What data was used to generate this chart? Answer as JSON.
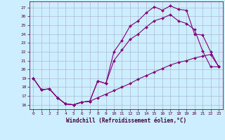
{
  "xlabel": "Windchill (Refroidissement éolien,°C)",
  "background_color": "#cceeff",
  "line_color": "#800080",
  "grid_color": "#aaaacc",
  "x_ticks": [
    0,
    1,
    2,
    3,
    4,
    5,
    6,
    7,
    8,
    9,
    10,
    11,
    12,
    13,
    14,
    15,
    16,
    17,
    18,
    19,
    20,
    21,
    22,
    23
  ],
  "y_ticks": [
    16,
    17,
    18,
    19,
    20,
    21,
    22,
    23,
    24,
    25,
    26,
    27
  ],
  "xlim": [
    -0.5,
    23.5
  ],
  "ylim": [
    15.5,
    27.7
  ],
  "series": [
    {
      "x": [
        0,
        1,
        2,
        3,
        4,
        5,
        6,
        7,
        8,
        9,
        10,
        11,
        12,
        13,
        14,
        15,
        16,
        17,
        18,
        19,
        20,
        21,
        22,
        23
      ],
      "y": [
        19.0,
        17.7,
        17.8,
        16.8,
        16.1,
        16.0,
        16.3,
        16.4,
        18.7,
        18.4,
        22.0,
        23.3,
        24.9,
        25.5,
        26.4,
        27.1,
        26.7,
        27.2,
        26.8,
        26.7,
        24.0,
        23.9,
        22.0,
        20.3
      ]
    },
    {
      "x": [
        0,
        1,
        2,
        3,
        4,
        5,
        6,
        7,
        8,
        9,
        10,
        11,
        12,
        13,
        14,
        15,
        16,
        17,
        18,
        19,
        20,
        21,
        22,
        23
      ],
      "y": [
        19.0,
        17.7,
        17.8,
        16.8,
        16.1,
        16.0,
        16.3,
        16.4,
        18.7,
        18.4,
        21.0,
        22.2,
        23.4,
        24.0,
        24.8,
        25.5,
        25.8,
        26.2,
        25.5,
        25.2,
        24.5,
        22.1,
        20.3,
        20.3
      ]
    },
    {
      "x": [
        0,
        1,
        2,
        3,
        4,
        5,
        6,
        7,
        8,
        9,
        10,
        11,
        12,
        13,
        14,
        15,
        16,
        17,
        18,
        19,
        20,
        21,
        22,
        23
      ],
      "y": [
        19.0,
        17.7,
        17.8,
        16.8,
        16.1,
        16.0,
        16.3,
        16.4,
        16.8,
        17.2,
        17.6,
        18.0,
        18.4,
        18.9,
        19.3,
        19.7,
        20.1,
        20.5,
        20.8,
        21.0,
        21.3,
        21.5,
        21.7,
        20.3
      ]
    }
  ]
}
